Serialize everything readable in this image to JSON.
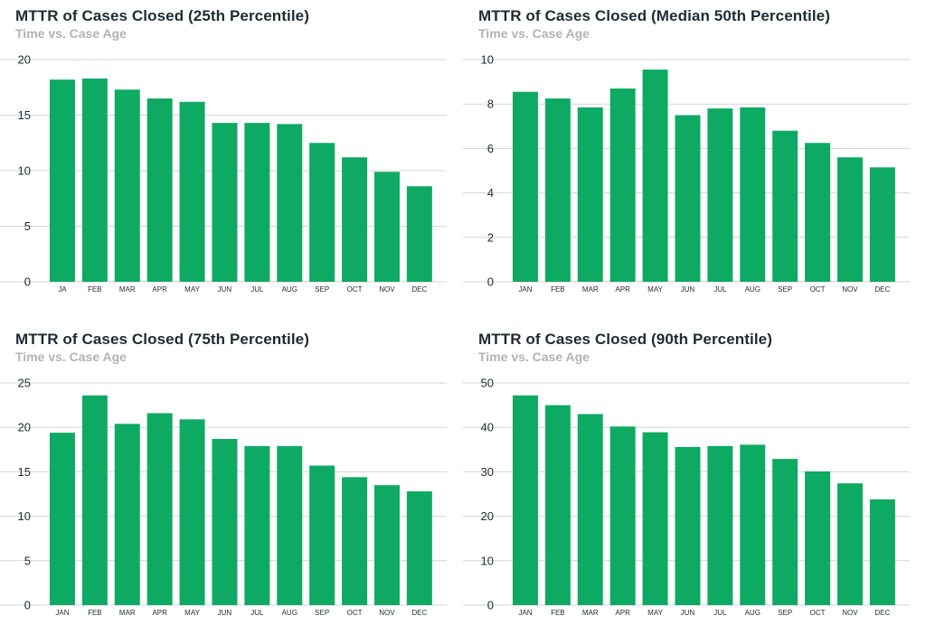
{
  "bar_color": "#0eaa63",
  "grid_color": "#d4d4d4",
  "chart_data": [
    {
      "type": "bar",
      "title": "MTTR of Cases Closed (25th Percentile)",
      "subtitle": "Time vs. Case Age",
      "categories": [
        "JA",
        "FEB",
        "MAR",
        "APR",
        "MAY",
        "JUN",
        "JUL",
        "AUG",
        "SEP",
        "OCT",
        "NOV",
        "DEC"
      ],
      "values": [
        18.2,
        18.3,
        17.3,
        16.5,
        16.2,
        14.3,
        14.3,
        14.2,
        12.5,
        11.2,
        9.9,
        8.6
      ],
      "ylim": [
        0,
        20
      ],
      "yticks": [
        0,
        5,
        10,
        15,
        20
      ],
      "grid": true
    },
    {
      "type": "bar",
      "title": "MTTR of Cases Closed (Median 50th Percentile)",
      "subtitle": "Time vs. Case Age",
      "categories": [
        "JAN",
        "FEB",
        "MAR",
        "APR",
        "MAY",
        "JUN",
        "JUL",
        "AUG",
        "SEP",
        "OCT",
        "NOV",
        "DEC"
      ],
      "values": [
        8.55,
        8.25,
        7.85,
        8.7,
        9.55,
        7.5,
        7.8,
        7.85,
        6.8,
        6.25,
        5.6,
        5.15
      ],
      "ylim": [
        0,
        10
      ],
      "yticks": [
        0,
        2,
        4,
        6,
        8,
        10
      ],
      "grid": true
    },
    {
      "type": "bar",
      "title": "MTTR of Cases Closed (75th Percentile)",
      "subtitle": "Time vs. Case Age",
      "categories": [
        "JAN",
        "FEB",
        "MAR",
        "APR",
        "MAY",
        "JUN",
        "JUL",
        "AUG",
        "SEP",
        "OCT",
        "NOV",
        "DEC"
      ],
      "values": [
        19.4,
        23.6,
        20.4,
        21.6,
        20.9,
        18.7,
        17.9,
        17.9,
        15.7,
        14.4,
        13.5,
        12.8
      ],
      "ylim": [
        0,
        25
      ],
      "yticks": [
        0,
        5,
        10,
        15,
        20,
        25
      ],
      "grid": true
    },
    {
      "type": "bar",
      "title": "MTTR of Cases Closed (90th Percentile)",
      "subtitle": "Time vs. Case Age",
      "categories": [
        "JAN",
        "FEB",
        "MAR",
        "APR",
        "MAY",
        "JUN",
        "JUL",
        "AUG",
        "SEP",
        "OCT",
        "NOV",
        "DEC"
      ],
      "values": [
        47.2,
        45.0,
        43.0,
        40.2,
        38.9,
        35.6,
        35.8,
        36.1,
        32.9,
        30.1,
        27.4,
        23.8
      ],
      "ylim": [
        0,
        50
      ],
      "yticks": [
        0,
        10,
        20,
        30,
        40,
        50
      ],
      "grid": true
    }
  ]
}
